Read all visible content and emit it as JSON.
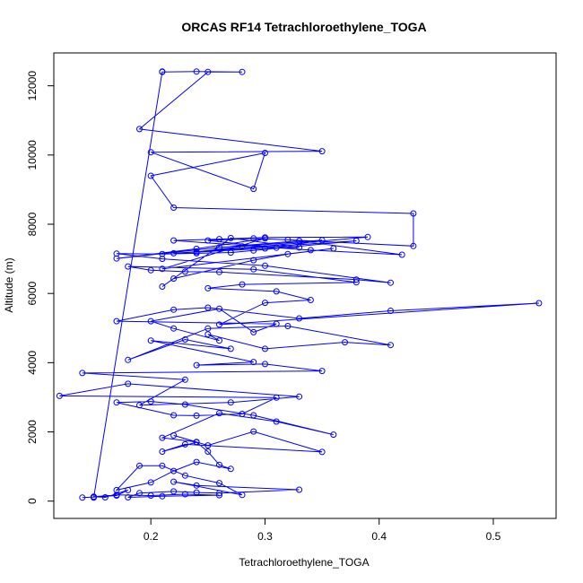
{
  "chart_data": {
    "type": "line",
    "title": "ORCAS RF14 Tetrachloroethylene_TOGA",
    "xlabel": "Tetrachloroethylene_TOGA",
    "ylabel": "Altitude (m)",
    "xlim": [
      0.115,
      0.555
    ],
    "ylim": [
      -500,
      12950
    ],
    "xticks": [
      0.2,
      0.3,
      0.4,
      0.5
    ],
    "xtick_labels": [
      "0.2",
      "0.3",
      "0.4",
      "0.5"
    ],
    "yticks": [
      0,
      2000,
      4000,
      6000,
      8000,
      10000,
      12000
    ],
    "ytick_labels": [
      "0",
      "2000",
      "4000",
      "6000",
      "8000",
      "10000",
      "12000"
    ],
    "grid": false,
    "series_color": "#0000ff",
    "markers": "open-circle",
    "series": [
      {
        "x": [
          0.14,
          0.15,
          0.17,
          0.18,
          0.16,
          0.15,
          0.17,
          0.2,
          0.23,
          0.26,
          0.21,
          0.18,
          0.19,
          0.22,
          0.24,
          0.26,
          0.33,
          0.24,
          0.22,
          0.28,
          0.26,
          0.23,
          0.21,
          0.19,
          0.17,
          0.2,
          0.22,
          0.24,
          0.27,
          0.26,
          0.25,
          0.24,
          0.21,
          0.23,
          0.35,
          0.29,
          0.25,
          0.22,
          0.24,
          0.21,
          0.26,
          0.31,
          0.36,
          0.29,
          0.23,
          0.2,
          0.17,
          0.22,
          0.24,
          0.28,
          0.31,
          0.12,
          0.18,
          0.33,
          0.27,
          0.19,
          0.23,
          0.14,
          0.35,
          0.3,
          0.24,
          0.29,
          0.2,
          0.27,
          0.23,
          0.18,
          0.25,
          0.32,
          0.41,
          0.37,
          0.3,
          0.25,
          0.26,
          0.22,
          0.2,
          0.26,
          0.29,
          0.31,
          0.17,
          0.22,
          0.25,
          0.33,
          0.41,
          0.54,
          0.26,
          0.3,
          0.34,
          0.31,
          0.25,
          0.28,
          0.38,
          0.29,
          0.18,
          0.2,
          0.23,
          0.26,
          0.38,
          0.41,
          0.3,
          0.21,
          0.17,
          0.21,
          0.24,
          0.27,
          0.29,
          0.38,
          0.22,
          0.3,
          0.33,
          0.27,
          0.21,
          0.22,
          0.29,
          0.32,
          0.36,
          0.21,
          0.3,
          0.24,
          0.17,
          0.26,
          0.33,
          0.42,
          0.34,
          0.22,
          0.26,
          0.3,
          0.39,
          0.24,
          0.28,
          0.35,
          0.31,
          0.25,
          0.29,
          0.32,
          0.43,
          0.43,
          0.22,
          0.2,
          0.3,
          0.29,
          0.2,
          0.35,
          0.19,
          0.25,
          0.28,
          0.24,
          0.21,
          0.21,
          0.15
        ],
        "y": [
          100,
          120,
          160,
          320,
          110,
          130,
          180,
          160,
          200,
          170,
          140,
          110,
          230,
          280,
          250,
          230,
          330,
          450,
          560,
          180,
          520,
          740,
          1020,
          1020,
          320,
          540,
          870,
          1130,
          930,
          1050,
          1430,
          1700,
          1430,
          1640,
          1420,
          2010,
          1610,
          1900,
          1710,
          1830,
          2540,
          2300,
          1920,
          2480,
          2790,
          2880,
          2850,
          2480,
          2470,
          2520,
          2990,
          3040,
          3390,
          3020,
          2850,
          2770,
          3510,
          3700,
          3760,
          3960,
          3930,
          4020,
          4640,
          4400,
          4670,
          4080,
          4990,
          5060,
          4510,
          4590,
          4400,
          4820,
          4640,
          4990,
          5200,
          5560,
          4880,
          5120,
          5200,
          5530,
          5590,
          5280,
          5500,
          5720,
          5100,
          5730,
          5810,
          6060,
          6150,
          6260,
          6320,
          6700,
          6780,
          6670,
          6630,
          6620,
          6400,
          6310,
          6800,
          7000,
          7150,
          7140,
          7160,
          7180,
          7240,
          7520,
          7160,
          7300,
          7330,
          7600,
          6200,
          6430,
          6960,
          7140,
          7300,
          6710,
          7590,
          7290,
          7010,
          7330,
          7520,
          7120,
          7250,
          7530,
          7570,
          7620,
          7630,
          7200,
          7360,
          7540,
          7320,
          7530,
          7590,
          7550,
          7370,
          8310,
          8480,
          9400,
          10060,
          9020,
          10080,
          10110,
          10750,
          12400,
          12400,
          12410,
          12400,
          12410,
          100
        ]
      }
    ]
  }
}
